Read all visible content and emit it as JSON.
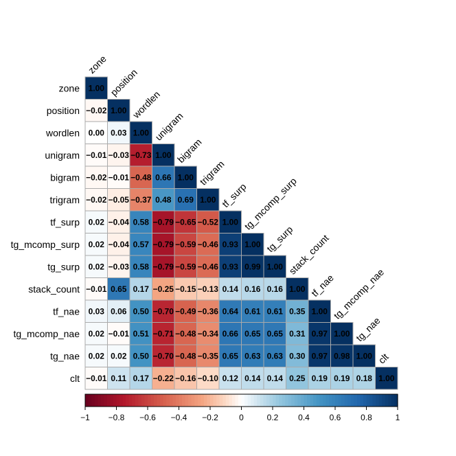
{
  "chart_data": {
    "type": "heatmap",
    "variables": [
      "zone",
      "position",
      "wordlen",
      "unigram",
      "bigram",
      "trigram",
      "tf_surp",
      "tg_mcomp_surp",
      "tg_surp",
      "stack_count",
      "tf_nae",
      "tg_mcomp_nae",
      "tg_nae",
      "clt"
    ],
    "matrix": [
      [
        1.0
      ],
      [
        -0.02,
        1.0
      ],
      [
        0.0,
        0.03,
        1.0
      ],
      [
        -0.01,
        -0.03,
        -0.73,
        1.0
      ],
      [
        -0.02,
        -0.01,
        -0.48,
        0.66,
        1.0
      ],
      [
        -0.02,
        -0.05,
        -0.37,
        0.48,
        0.69,
        1.0
      ],
      [
        0.02,
        -0.04,
        0.58,
        -0.79,
        -0.65,
        -0.52,
        1.0
      ],
      [
        0.02,
        -0.04,
        0.57,
        -0.79,
        -0.59,
        -0.46,
        0.93,
        1.0
      ],
      [
        0.02,
        -0.03,
        0.58,
        -0.79,
        -0.59,
        -0.46,
        0.93,
        0.99,
        1.0
      ],
      [
        -0.01,
        0.65,
        0.17,
        -0.25,
        -0.15,
        -0.13,
        0.14,
        0.16,
        0.16,
        1.0
      ],
      [
        0.03,
        0.06,
        0.5,
        -0.7,
        -0.49,
        -0.36,
        0.64,
        0.61,
        0.61,
        0.35,
        1.0
      ],
      [
        0.02,
        -0.01,
        0.51,
        -0.71,
        -0.48,
        -0.34,
        0.66,
        0.65,
        0.65,
        0.31,
        0.97,
        1.0
      ],
      [
        0.02,
        0.02,
        0.5,
        -0.7,
        -0.48,
        -0.35,
        0.65,
        0.63,
        0.63,
        0.3,
        0.97,
        0.98,
        1.0
      ],
      [
        -0.01,
        0.11,
        0.17,
        -0.22,
        -0.16,
        -0.1,
        0.12,
        0.14,
        0.14,
        0.25,
        0.19,
        0.19,
        0.18,
        1.0
      ]
    ],
    "colorbar": {
      "range": [
        -1,
        1
      ],
      "ticks": [
        -1,
        -0.8,
        -0.6,
        -0.4,
        -0.2,
        0,
        0.2,
        0.4,
        0.6,
        0.8,
        1
      ],
      "tick_labels": [
        "−1",
        "−0.8",
        "−0.6",
        "−0.4",
        "−0.2",
        "0",
        "0.2",
        "0.4",
        "0.6",
        "0.8",
        "1"
      ]
    },
    "colors": {
      "negative": "#67001F",
      "zero": "#FFFFFF",
      "positive": "#053061",
      "grid": "#AAAAAA"
    },
    "layout_style": "lower-triangle"
  }
}
